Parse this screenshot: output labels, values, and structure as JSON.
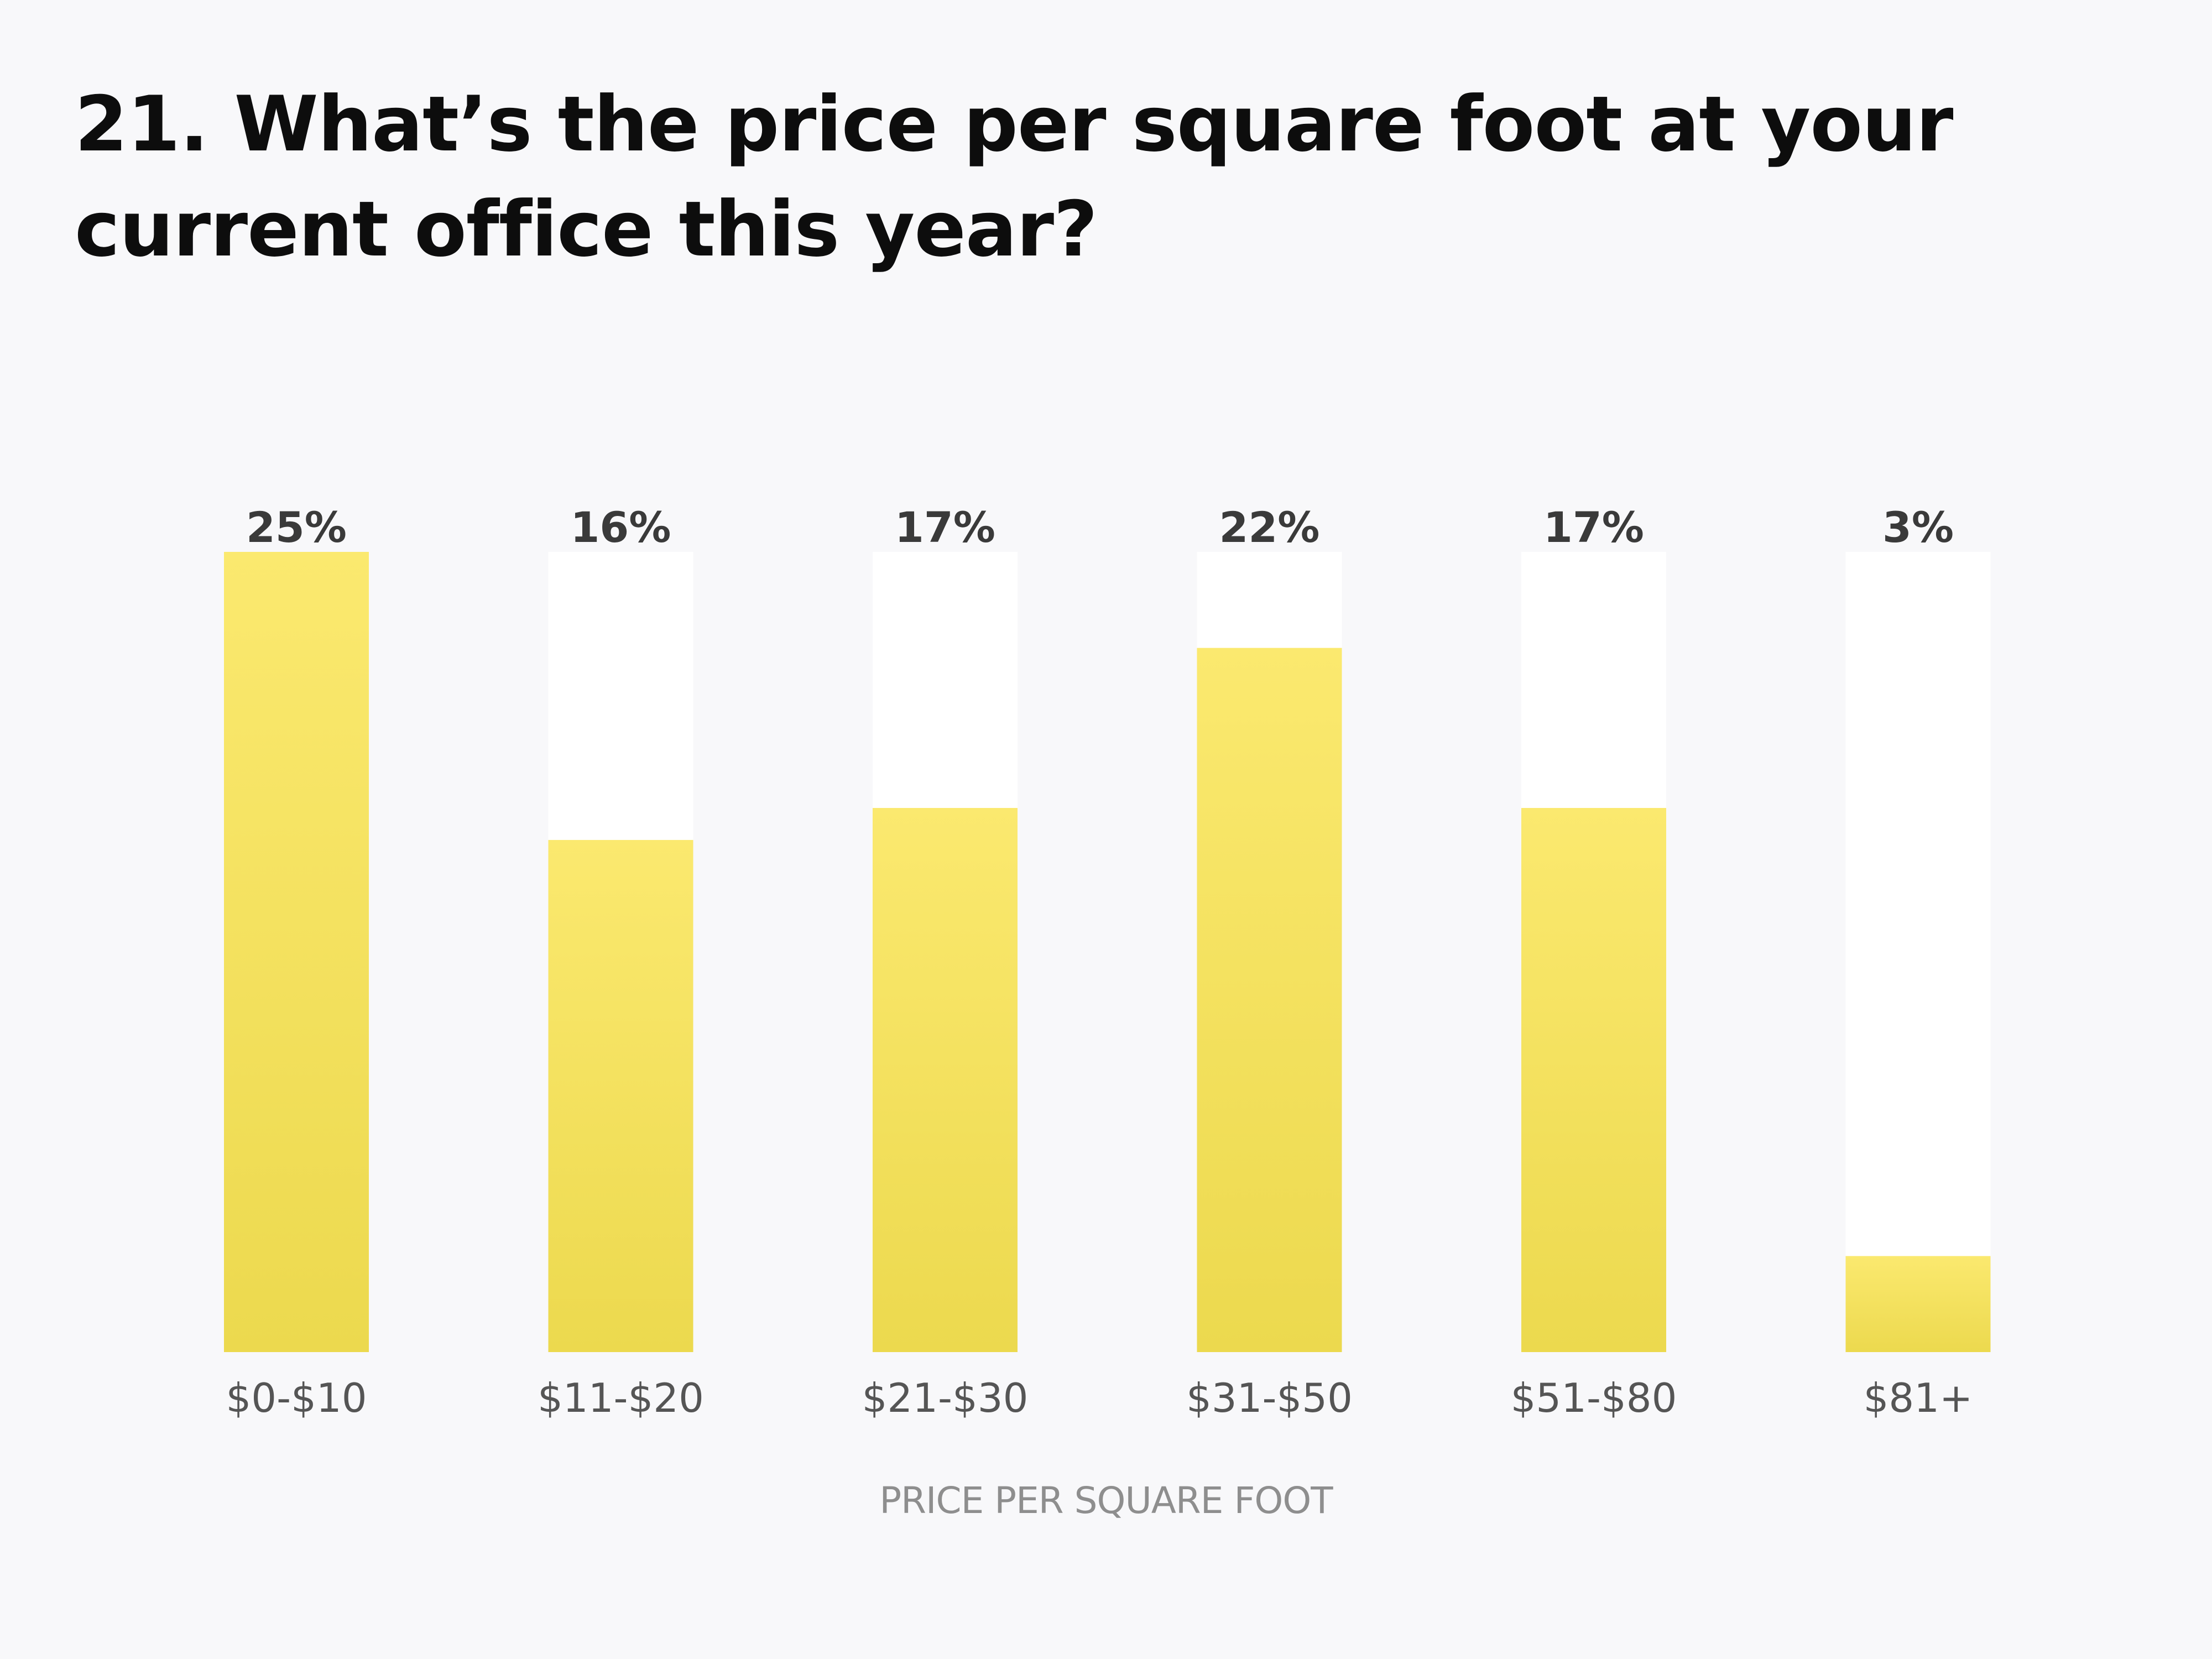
{
  "chart_data": {
    "type": "bar",
    "title": "21. What’s the price per square foot at your current office this year?",
    "xlabel": "PRICE PER SQUARE FOOT",
    "ylabel": "",
    "categories": [
      "$0-$10",
      "$11-$20",
      "$21-$30",
      "$31-$50",
      "$51-$80",
      "$81+"
    ],
    "values": [
      25,
      16,
      17,
      22,
      17,
      3
    ],
    "value_labels": [
      "25%",
      "16%",
      "17%",
      "22%",
      "17%",
      "3%"
    ],
    "ylim": [
      0,
      25
    ],
    "grid": false,
    "legend": "none",
    "colors": {
      "bar_fill_top": "#fbe96f",
      "bar_fill_bottom": "#ecd94e",
      "bar_track": "#ffffff",
      "background": "#f8f8fa"
    }
  }
}
